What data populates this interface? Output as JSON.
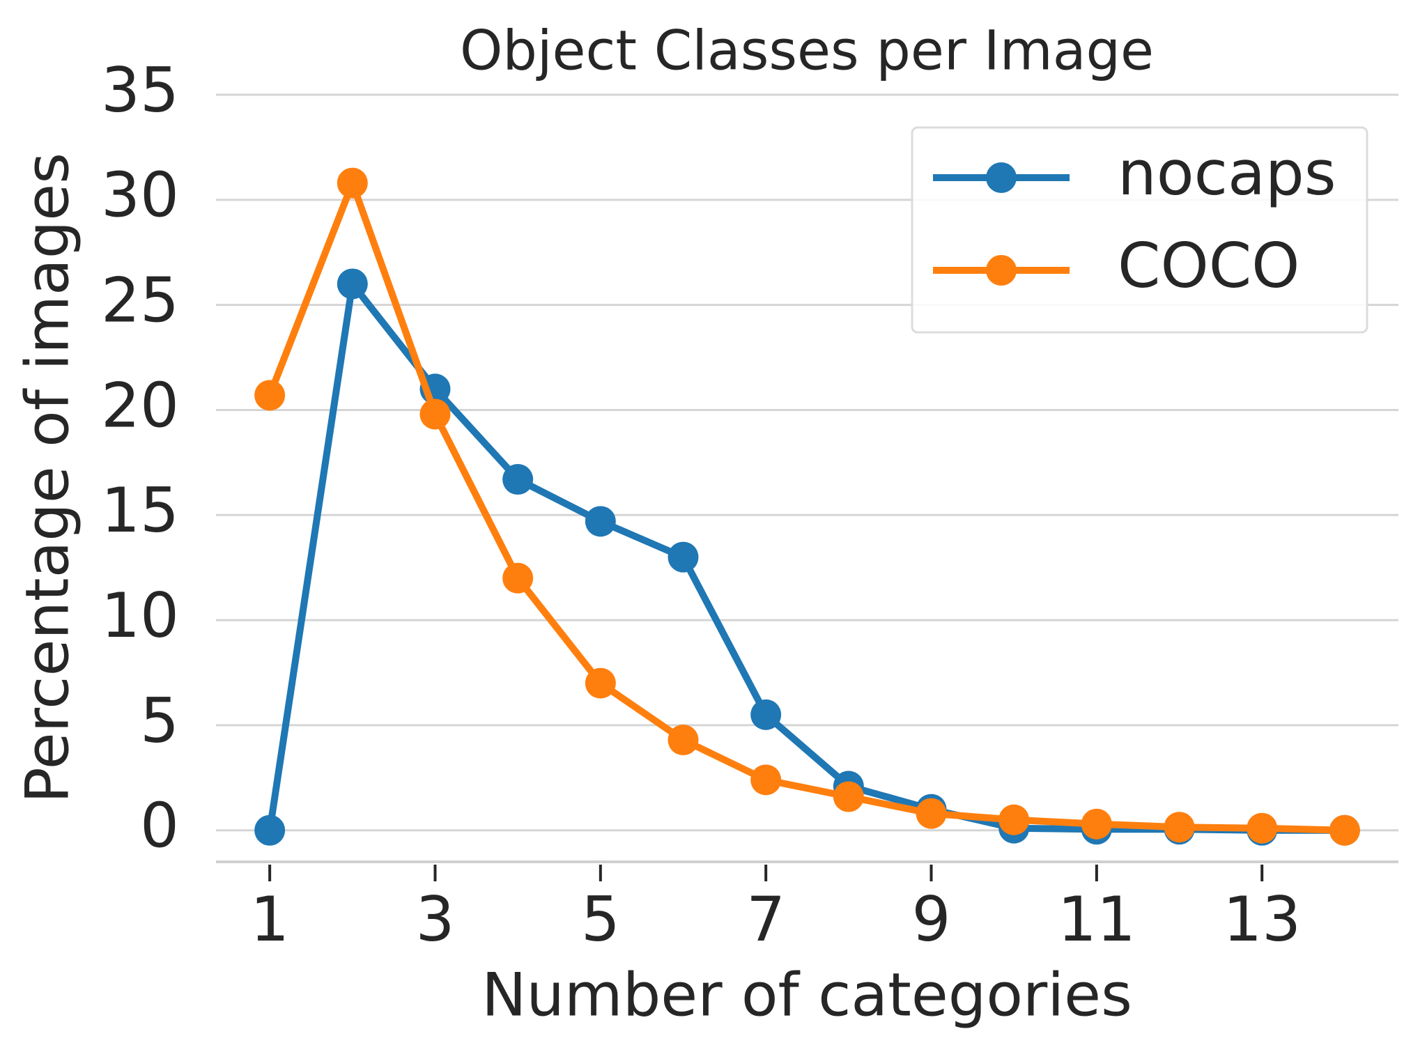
{
  "chart_data": {
    "type": "line",
    "title": "Object Classes per Image",
    "xlabel": "Number of categories",
    "ylabel": "Percentage of images",
    "x": [
      1,
      2,
      3,
      4,
      5,
      6,
      7,
      8,
      9,
      10,
      11,
      12,
      13,
      14
    ],
    "series": [
      {
        "name": "nocaps",
        "color": "#1f77b4",
        "values": [
          0,
          26,
          21,
          16.7,
          14.7,
          13,
          5.5,
          2.1,
          1.0,
          0.1,
          0.05,
          0.05,
          0,
          0
        ]
      },
      {
        "name": "COCO",
        "color": "#ff7f0e",
        "values": [
          20.7,
          30.8,
          19.8,
          12,
          7,
          4.3,
          2.4,
          1.6,
          0.8,
          0.5,
          0.3,
          0.15,
          0.1,
          0
        ]
      }
    ],
    "xlim": [
      0.35,
      14.65
    ],
    "ylim": [
      -1.5,
      35
    ],
    "xticks": [
      1,
      3,
      5,
      7,
      9,
      11,
      13
    ],
    "yticks": [
      0,
      5,
      10,
      15,
      20,
      25,
      30,
      35
    ],
    "grid": true,
    "legend": "upper right"
  }
}
